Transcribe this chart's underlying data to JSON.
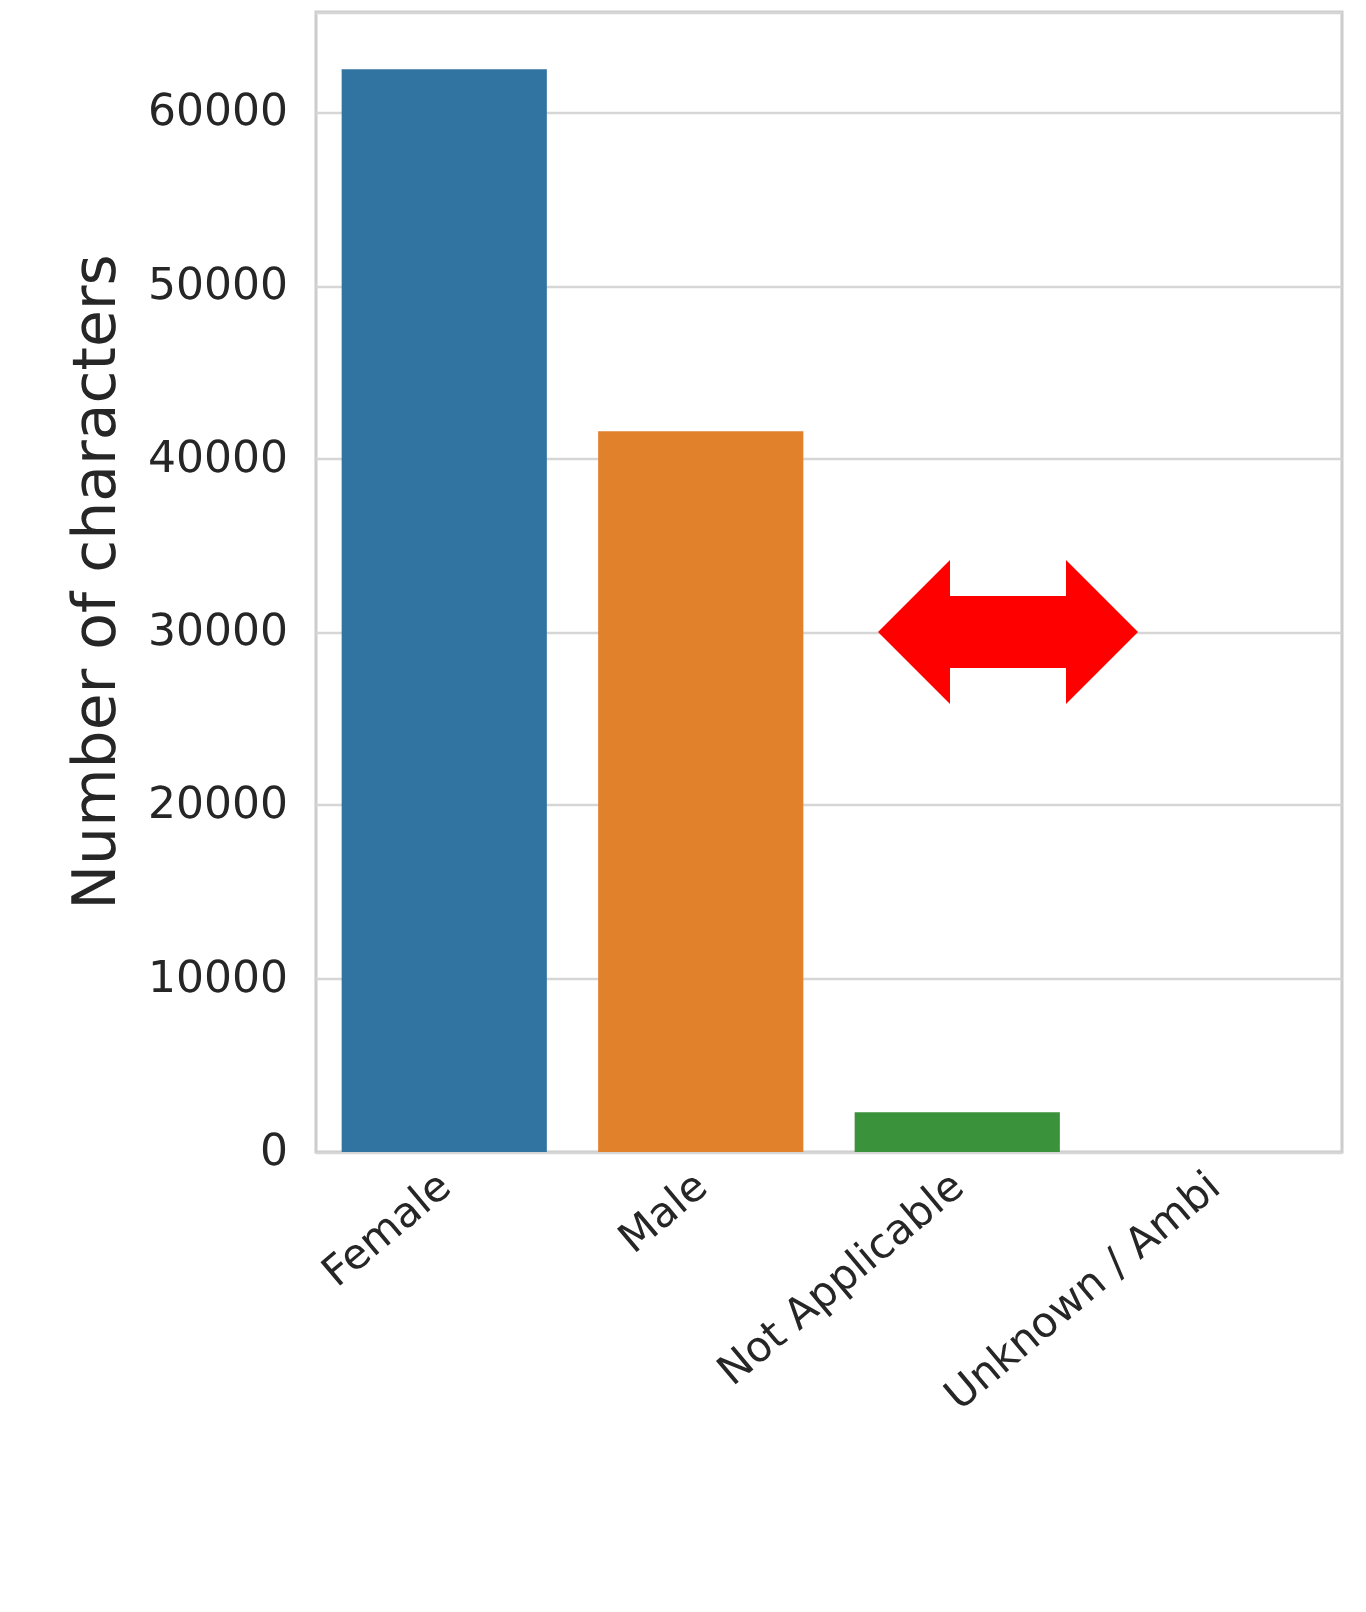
{
  "chart_data": {
    "type": "bar",
    "ylabel": "Number of characters",
    "categories": [
      "Female",
      "Male",
      "Not Applicable",
      "Unknown / Ambi"
    ],
    "values": [
      62500,
      41600,
      2300,
      null
    ],
    "colors": [
      "#3274a1",
      "#e1812c",
      "#3a923a",
      null
    ],
    "ylim": [
      0,
      65800
    ],
    "yticks": [
      0,
      10000,
      20000,
      30000,
      40000,
      50000,
      60000
    ],
    "grid": "y"
  }
}
